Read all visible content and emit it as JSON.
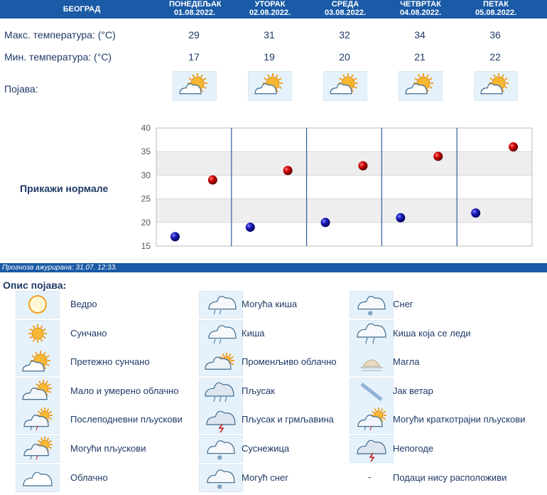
{
  "city": "БЕОГРАД",
  "days": [
    {
      "name": "ПОНЕДЕЉАК",
      "date": "01.08.2022."
    },
    {
      "name": "УТОРАК",
      "date": "02.08.2022."
    },
    {
      "name": "СРЕДА",
      "date": "03.08.2022."
    },
    {
      "name": "ЧЕТВРТАК",
      "date": "04.08.2022."
    },
    {
      "name": "ПЕТАК",
      "date": "05.08.2022."
    }
  ],
  "labels": {
    "max": "Макс. температура: (°C)",
    "min": "Мин. температура: (°C)",
    "phen": "Појава:",
    "show_normals": "Прикажи нормале",
    "updated": "Прогноза ажурирана:  31.07. 12:33.",
    "legend_title": "Опис појава:"
  },
  "max_temps": [
    "29",
    "31",
    "32",
    "34",
    "36"
  ],
  "min_temps": [
    "17",
    "19",
    "20",
    "21",
    "22"
  ],
  "day_icons": [
    "partly-sunny-icon",
    "partly-sunny-icon",
    "partly-sunny-icon",
    "partly-sunny-icon",
    "partly-sunny-icon"
  ],
  "chart_data": {
    "type": "scatter",
    "categories": [
      "ПОНЕДЕЉАК",
      "УТОРАК",
      "СРЕДА",
      "ЧЕТВРТАК",
      "ПЕТАК"
    ],
    "series": [
      {
        "name": "",
        "color": "#c00000",
        "values": [
          29,
          31,
          32,
          34,
          36
        ]
      },
      {
        "name": "",
        "color": "#1a1aa0",
        "values": [
          17,
          19,
          20,
          21,
          22
        ]
      }
    ],
    "ylim": [
      15,
      40
    ],
    "yticks": [
      15,
      20,
      25,
      30,
      35,
      40
    ],
    "bands": [
      [
        30,
        35
      ],
      [
        20,
        25
      ]
    ],
    "grid": true
  },
  "legend": [
    [
      {
        "icon": "clear-icon",
        "label": "Ведро"
      },
      {
        "icon": "sunny-icon",
        "label": "Сунчано"
      },
      {
        "icon": "mostly-sunny-icon",
        "label": "Претежно сунчано"
      },
      {
        "icon": "partly-cloudy-icon",
        "label": "Мало и умерено облачно"
      },
      {
        "icon": "afternoon-showers-icon",
        "label": "Послеподневни пљускови"
      },
      {
        "icon": "possible-showers-icon",
        "label": "Могући пљускови"
      },
      {
        "icon": "cloudy-icon",
        "label": "Облачно"
      }
    ],
    [
      {
        "icon": "possible-rain-icon",
        "label": "Могућа киша"
      },
      {
        "icon": "rain-icon",
        "label": "Киша"
      },
      {
        "icon": "variable-cloudy-icon",
        "label": "Променљиво облачно"
      },
      {
        "icon": "shower-icon",
        "label": "Пљусак"
      },
      {
        "icon": "thunder-shower-icon",
        "label": "Пљусак и грмљавина"
      },
      {
        "icon": "sleet-icon",
        "label": "Суснежица"
      },
      {
        "icon": "possible-snow-icon",
        "label": "Могућ снег"
      }
    ],
    [
      {
        "icon": "snow-icon",
        "label": "Снег"
      },
      {
        "icon": "freezing-rain-icon",
        "label": "Киша која се леди"
      },
      {
        "icon": "fog-icon",
        "label": "Магла"
      },
      {
        "icon": "wind-icon",
        "label": "Јак ветар"
      },
      {
        "icon": "brief-showers-icon",
        "label": "Могући краткотрајни пљускови"
      },
      {
        "icon": "storm-icon",
        "label": "Непогоде"
      },
      {
        "icon": "no-data",
        "label": "Подаци нису расположиви",
        "symbol": "-"
      }
    ]
  ]
}
